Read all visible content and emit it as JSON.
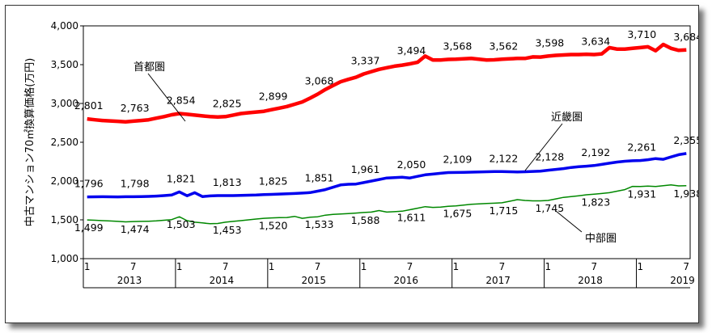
{
  "chart_data": {
    "type": "line",
    "ylabel": "中古マンション70㎡換算価格(万円)",
    "ylim": [
      1000,
      4000
    ],
    "y_ticks": [
      "1,000",
      "1,500",
      "2,000",
      "2,500",
      "3,000",
      "3,500",
      "4,000"
    ],
    "x_month_ticks": [
      "1",
      "7",
      "1",
      "7",
      "1",
      "7",
      "1",
      "7",
      "1",
      "7",
      "1",
      "7",
      "1",
      "7"
    ],
    "x_years": [
      "2013",
      "2014",
      "2015",
      "2016",
      "2017",
      "2018",
      "2019"
    ],
    "grid": false,
    "series": [
      {
        "name": "首都圏",
        "color": "#ff0000",
        "values": [
          2801,
          2790,
          2780,
          2775,
          2770,
          2763,
          2772,
          2780,
          2790,
          2810,
          2830,
          2854,
          2870,
          2860,
          2850,
          2840,
          2830,
          2825,
          2830,
          2850,
          2870,
          2880,
          2890,
          2899,
          2920,
          2940,
          2960,
          2990,
          3020,
          3068,
          3120,
          3180,
          3230,
          3280,
          3310,
          3337,
          3380,
          3410,
          3440,
          3460,
          3480,
          3494,
          3510,
          3530,
          3610,
          3560,
          3560,
          3568,
          3570,
          3575,
          3580,
          3570,
          3560,
          3562,
          3570,
          3575,
          3580,
          3580,
          3600,
          3598,
          3610,
          3620,
          3625,
          3630,
          3630,
          3634,
          3630,
          3640,
          3720,
          3700,
          3700,
          3710,
          3720,
          3730,
          3680,
          3760,
          3710,
          3684,
          3690
        ],
        "labels": [
          {
            "i": 0,
            "text": "2,801"
          },
          {
            "i": 6,
            "text": "2,763"
          },
          {
            "i": 12,
            "text": "2,854"
          },
          {
            "i": 18,
            "text": "2,825"
          },
          {
            "i": 24,
            "text": "2,899"
          },
          {
            "i": 30,
            "text": "3,068"
          },
          {
            "i": 36,
            "text": "3,337"
          },
          {
            "i": 42,
            "text": "3,494"
          },
          {
            "i": 48,
            "text": "3,568"
          },
          {
            "i": 54,
            "text": "3,562"
          },
          {
            "i": 60,
            "text": "3,598"
          },
          {
            "i": 66,
            "text": "3,634"
          },
          {
            "i": 72,
            "text": "3,710"
          },
          {
            "i": 78,
            "text": "3,684"
          }
        ]
      },
      {
        "name": "近畿圏",
        "color": "#0000ee",
        "values": [
          1796,
          1797,
          1798,
          1797,
          1796,
          1798,
          1798,
          1800,
          1802,
          1806,
          1812,
          1821,
          1860,
          1810,
          1850,
          1800,
          1808,
          1813,
          1812,
          1813,
          1815,
          1818,
          1820,
          1825,
          1828,
          1832,
          1836,
          1840,
          1845,
          1851,
          1870,
          1890,
          1920,
          1950,
          1958,
          1961,
          1980,
          2000,
          2020,
          2040,
          2045,
          2050,
          2040,
          2060,
          2080,
          2090,
          2100,
          2109,
          2110,
          2112,
          2115,
          2118,
          2120,
          2122,
          2122,
          2120,
          2118,
          2120,
          2124,
          2128,
          2140,
          2150,
          2160,
          2175,
          2185,
          2192,
          2200,
          2215,
          2230,
          2245,
          2255,
          2261,
          2265,
          2275,
          2290,
          2280,
          2310,
          2340,
          2355
        ],
        "labels": [
          {
            "i": 0,
            "text": "1,796"
          },
          {
            "i": 6,
            "text": "1,798"
          },
          {
            "i": 12,
            "text": "1,821"
          },
          {
            "i": 18,
            "text": "1,813"
          },
          {
            "i": 24,
            "text": "1,825"
          },
          {
            "i": 30,
            "text": "1,851"
          },
          {
            "i": 36,
            "text": "1,961"
          },
          {
            "i": 42,
            "text": "2,050"
          },
          {
            "i": 48,
            "text": "2,109"
          },
          {
            "i": 54,
            "text": "2,122"
          },
          {
            "i": 60,
            "text": "2,128"
          },
          {
            "i": 66,
            "text": "2,192"
          },
          {
            "i": 72,
            "text": "2,261"
          },
          {
            "i": 78,
            "text": "2,355"
          }
        ]
      },
      {
        "name": "中部圏",
        "color": "#008800",
        "values": [
          1499,
          1495,
          1490,
          1485,
          1480,
          1474,
          1478,
          1480,
          1482,
          1486,
          1495,
          1503,
          1540,
          1490,
          1470,
          1460,
          1450,
          1453,
          1470,
          1480,
          1490,
          1500,
          1510,
          1520,
          1525,
          1528,
          1530,
          1545,
          1520,
          1533,
          1540,
          1560,
          1570,
          1575,
          1580,
          1588,
          1595,
          1600,
          1620,
          1600,
          1605,
          1611,
          1630,
          1650,
          1670,
          1660,
          1665,
          1675,
          1680,
          1690,
          1700,
          1705,
          1710,
          1715,
          1720,
          1740,
          1760,
          1750,
          1745,
          1745,
          1750,
          1770,
          1790,
          1800,
          1810,
          1823,
          1830,
          1840,
          1850,
          1870,
          1890,
          1931,
          1930,
          1935,
          1930,
          1940,
          1950,
          1938,
          1940
        ],
        "labels": [
          {
            "i": 0,
            "text": "1,499"
          },
          {
            "i": 6,
            "text": "1,474"
          },
          {
            "i": 12,
            "text": "1,503"
          },
          {
            "i": 18,
            "text": "1,453"
          },
          {
            "i": 24,
            "text": "1,520"
          },
          {
            "i": 30,
            "text": "1,533"
          },
          {
            "i": 36,
            "text": "1,588"
          },
          {
            "i": 42,
            "text": "1,611"
          },
          {
            "i": 48,
            "text": "1,675"
          },
          {
            "i": 54,
            "text": "1,715"
          },
          {
            "i": 60,
            "text": "1,745"
          },
          {
            "i": 66,
            "text": "1,823"
          },
          {
            "i": 72,
            "text": "1,931"
          },
          {
            "i": 78,
            "text": "1,938"
          }
        ]
      }
    ]
  }
}
